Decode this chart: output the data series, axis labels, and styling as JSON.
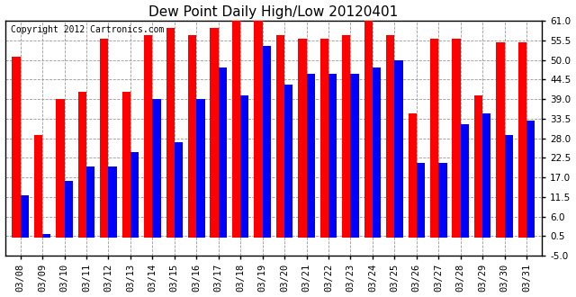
{
  "title": "Dew Point Daily High/Low 20120401",
  "copyright": "Copyright 2012 Cartronics.com",
  "dates": [
    "03/08",
    "03/09",
    "03/10",
    "03/11",
    "03/12",
    "03/13",
    "03/14",
    "03/15",
    "03/16",
    "03/17",
    "03/18",
    "03/19",
    "03/20",
    "03/21",
    "03/22",
    "03/23",
    "03/24",
    "03/25",
    "03/26",
    "03/27",
    "03/28",
    "03/29",
    "03/30",
    "03/31"
  ],
  "highs": [
    51,
    29,
    39,
    41,
    56,
    41,
    57,
    59,
    57,
    59,
    61,
    61,
    57,
    56,
    56,
    57,
    61,
    57,
    35,
    56,
    56,
    40,
    55,
    55
  ],
  "lows": [
    12,
    1,
    16,
    20,
    20,
    24,
    39,
    27,
    39,
    48,
    40,
    54,
    43,
    46,
    46,
    46,
    48,
    50,
    21,
    21,
    32,
    35,
    29,
    33
  ],
  "high_color": "#ff0000",
  "low_color": "#0000ff",
  "bg_color": "#ffffff",
  "ylim_min": -5,
  "ylim_max": 61,
  "yticks": [
    -5.0,
    0.5,
    6.0,
    11.5,
    17.0,
    22.5,
    28.0,
    33.5,
    39.0,
    44.5,
    50.0,
    55.5,
    61.0
  ],
  "grid_color": "#999999",
  "bar_width": 0.38,
  "title_fontsize": 11,
  "axis_fontsize": 7.5,
  "copyright_fontsize": 7
}
